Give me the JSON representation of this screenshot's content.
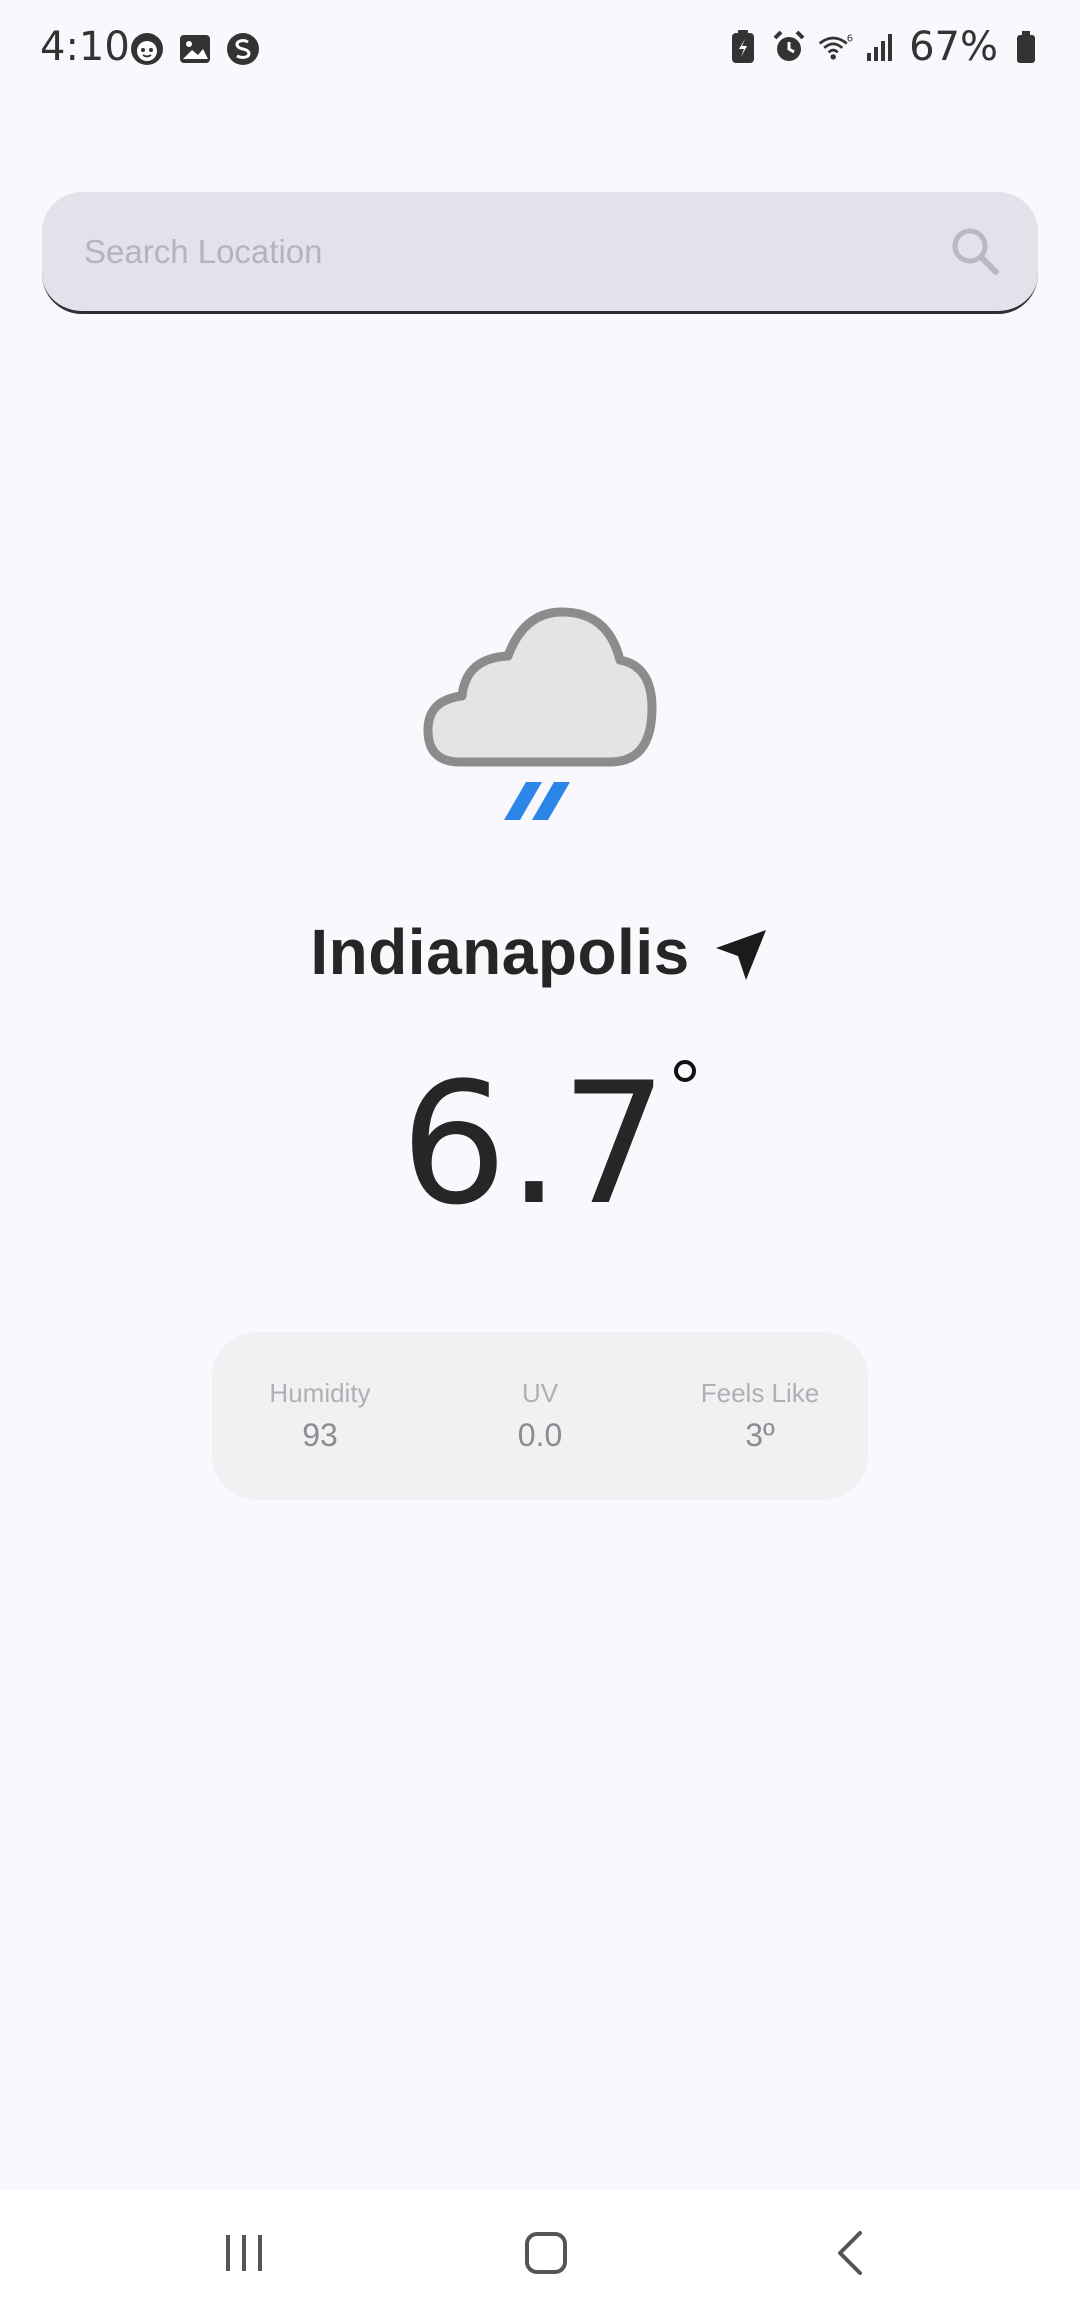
{
  "status_bar": {
    "time": "4:10",
    "battery_percent": "67%",
    "left_icons": [
      "face-icon",
      "image-icon",
      "s-circle-icon"
    ],
    "right_icons": [
      "battery-saver-icon",
      "alarm-icon",
      "wifi-6-icon",
      "signal-icon",
      "battery-icon"
    ]
  },
  "search": {
    "placeholder": "Search Location",
    "value": "",
    "icon": "search-icon"
  },
  "weather": {
    "icon": "rain-cloud-icon",
    "city": "Indianapolis",
    "location_icon": "navigation-arrow-icon",
    "temperature": "6.7",
    "degree_symbol": "°"
  },
  "details": [
    {
      "label": "Humidity",
      "value": "93"
    },
    {
      "label": "UV",
      "value": "0.0"
    },
    {
      "label": "Feels Like",
      "value": "3º"
    }
  ],
  "nav_bar": {
    "buttons": [
      "recent-apps-icon",
      "home-icon",
      "back-icon"
    ]
  },
  "colors": {
    "background": "#f8f8fd",
    "search_bg": "#e1e2ea",
    "card_bg": "#f1f1f3",
    "rain_blue": "#2b86e8",
    "text_dark": "#262626"
  }
}
